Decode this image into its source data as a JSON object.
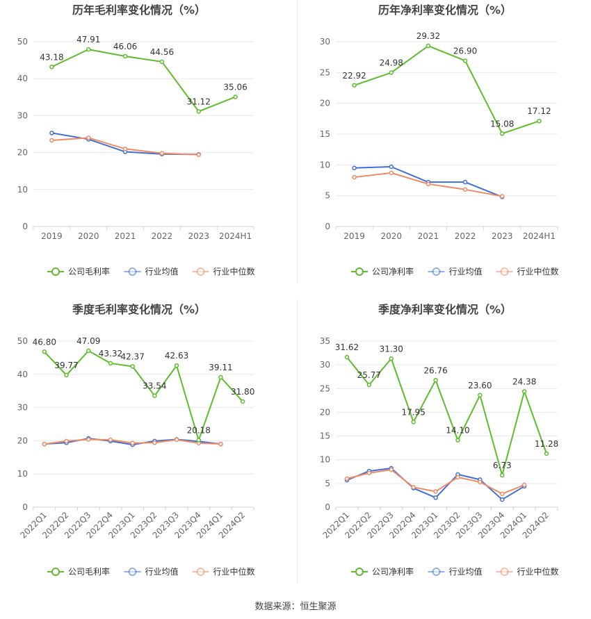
{
  "source": "数据来源：恒生聚源",
  "colors": {
    "company": "#5cbd2c",
    "industry_avg": "#3f6fd8",
    "industry_median": "#f08a62",
    "axis_text": "#666666",
    "grid": "#e6e9f0",
    "title": "#444444"
  },
  "legend_labels": {
    "industry_avg": "行业均值",
    "industry_median": "行业中位数"
  },
  "chart_data": [
    {
      "type": "line",
      "title": "历年毛利率变化情况（%）",
      "categories": [
        "2019",
        "2020",
        "2021",
        "2022",
        "2023",
        "2024H1"
      ],
      "ylim": [
        0,
        50
      ],
      "yticks": [
        0,
        10,
        20,
        30,
        40,
        50
      ],
      "grid": true,
      "legend": "bottom",
      "series": [
        {
          "name": "公司毛利率",
          "key": "company",
          "values": [
            43.18,
            47.91,
            46.06,
            44.56,
            31.12,
            35.06
          ],
          "labels": true
        },
        {
          "name": "行业均值",
          "key": "industry_avg",
          "values": [
            25.3,
            23.6,
            20.2,
            19.6,
            19.5,
            null
          ]
        },
        {
          "name": "行业中位数",
          "key": "industry_median",
          "values": [
            23.3,
            24.0,
            21.0,
            19.8,
            19.4,
            null
          ]
        }
      ]
    },
    {
      "type": "line",
      "title": "历年净利率变化情况（%）",
      "categories": [
        "2019",
        "2020",
        "2021",
        "2022",
        "2023",
        "2024H1"
      ],
      "ylim": [
        0,
        30
      ],
      "yticks": [
        0,
        5,
        10,
        15,
        20,
        25,
        30
      ],
      "grid": true,
      "legend": "bottom",
      "series": [
        {
          "name": "公司净利率",
          "key": "company",
          "values": [
            22.92,
            24.98,
            29.32,
            26.9,
            15.08,
            17.12
          ],
          "labels": true,
          "label_strings": [
            "22.92",
            "24.98",
            "29.32",
            "26.90",
            "15.08",
            "17.12"
          ]
        },
        {
          "name": "行业均值",
          "key": "industry_avg",
          "values": [
            9.5,
            9.7,
            7.2,
            7.2,
            4.8,
            null
          ]
        },
        {
          "name": "行业中位数",
          "key": "industry_median",
          "values": [
            8.0,
            8.7,
            6.9,
            6.0,
            4.9,
            null
          ]
        }
      ]
    },
    {
      "type": "line",
      "title": "季度毛利率变化情况（%）",
      "categories": [
        "2022Q1",
        "2022Q2",
        "2022Q3",
        "2022Q4",
        "2023Q1",
        "2023Q2",
        "2023Q3",
        "2023Q4",
        "2024Q1",
        "2024Q2"
      ],
      "ylim": [
        0,
        50
      ],
      "yticks": [
        0,
        10,
        20,
        30,
        40,
        50
      ],
      "grid": true,
      "legend": "bottom",
      "series": [
        {
          "name": "公司毛利率",
          "key": "company",
          "values": [
            46.8,
            39.77,
            47.09,
            43.32,
            42.37,
            33.54,
            42.63,
            20.18,
            39.11,
            31.8
          ],
          "labels": true,
          "label_strings": [
            "46.80",
            "39.77",
            "47.09",
            "43.32",
            "42.37",
            "33.54",
            "42.63",
            "20.18",
            "39.11",
            "31.80"
          ]
        },
        {
          "name": "行业均值",
          "key": "industry_avg",
          "values": [
            19.0,
            19.4,
            20.7,
            19.9,
            18.8,
            19.9,
            20.4,
            19.8,
            19.0,
            null
          ]
        },
        {
          "name": "行业中位数",
          "key": "industry_median",
          "values": [
            19.0,
            19.9,
            20.4,
            20.3,
            19.3,
            19.4,
            20.3,
            19.3,
            19.0,
            null
          ]
        }
      ]
    },
    {
      "type": "line",
      "title": "季度净利率变化情况（%）",
      "categories": [
        "2022Q1",
        "2022Q2",
        "2022Q3",
        "2022Q4",
        "2023Q1",
        "2023Q2",
        "2023Q3",
        "2023Q4",
        "2024Q1",
        "2024Q2"
      ],
      "ylim": [
        0,
        35
      ],
      "yticks": [
        0,
        5,
        10,
        15,
        20,
        25,
        30,
        35
      ],
      "grid": true,
      "legend": "bottom",
      "series": [
        {
          "name": "公司净利率",
          "key": "company",
          "values": [
            31.62,
            25.77,
            31.3,
            17.95,
            26.76,
            14.1,
            23.6,
            6.73,
            24.38,
            11.28
          ],
          "labels": true,
          "label_strings": [
            "31.62",
            "25.77",
            "31.30",
            "17.95",
            "26.76",
            "14.10",
            "23.60",
            "6.73",
            "24.38",
            "11.28"
          ]
        },
        {
          "name": "行业均值",
          "key": "industry_avg",
          "values": [
            5.7,
            7.6,
            8.2,
            4.0,
            2.0,
            6.9,
            5.8,
            1.6,
            4.4,
            null
          ]
        },
        {
          "name": "行业中位数",
          "key": "industry_median",
          "values": [
            6.0,
            7.2,
            7.9,
            4.2,
            3.3,
            6.3,
            5.3,
            2.8,
            4.7,
            null
          ]
        }
      ]
    }
  ]
}
